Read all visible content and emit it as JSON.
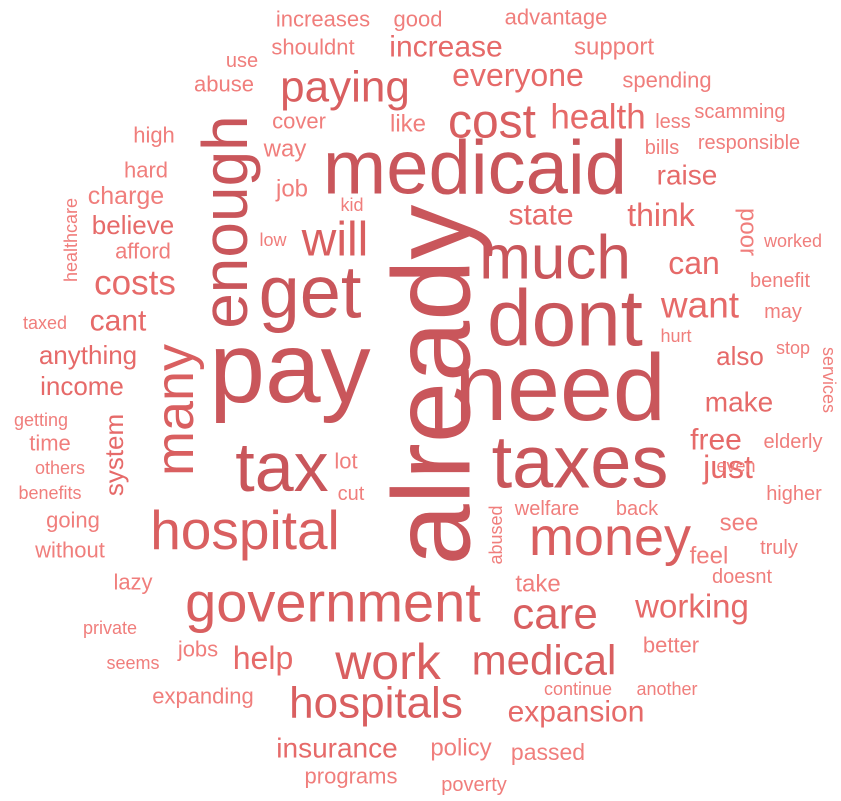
{
  "words": [
    "already",
    "pay",
    "need",
    "medicaid",
    "dont",
    "taxes",
    "get",
    "enough",
    "tax",
    "much",
    "hospital",
    "government",
    "money",
    "work",
    "hospitals",
    "medical",
    "many",
    "will",
    "cost",
    "paying",
    "care",
    "costs",
    "want",
    "health",
    "everyone",
    "increase",
    "working",
    "help",
    "expansion",
    "insurance",
    "think",
    "state",
    "can",
    "cant",
    "free",
    "just",
    "make",
    "raise",
    "also",
    "anything",
    "income",
    "believe",
    "charge",
    "system",
    "policy",
    "passed",
    "programs",
    "poverty",
    "support",
    "advantage",
    "good",
    "increases",
    "shouldnt",
    "use",
    "abuse",
    "spending",
    "scamming",
    "less",
    "responsible",
    "bills",
    "like",
    "cover",
    "way",
    "high",
    "hard",
    "job",
    "kid",
    "low",
    "afford",
    "healthcare",
    "poor",
    "worked",
    "benefit",
    "may",
    "hurt",
    "stop",
    "services",
    "taxed",
    "getting",
    "time",
    "others",
    "benefits",
    "going",
    "without",
    "lot",
    "cut",
    "abused",
    "welfare",
    "back",
    "elderly",
    "even",
    "higher",
    "see",
    "feel",
    "truly",
    "doesnt",
    "take",
    "lazy",
    "private",
    "jobs",
    "seems",
    "better",
    "expanding",
    "continue",
    "another"
  ]
}
